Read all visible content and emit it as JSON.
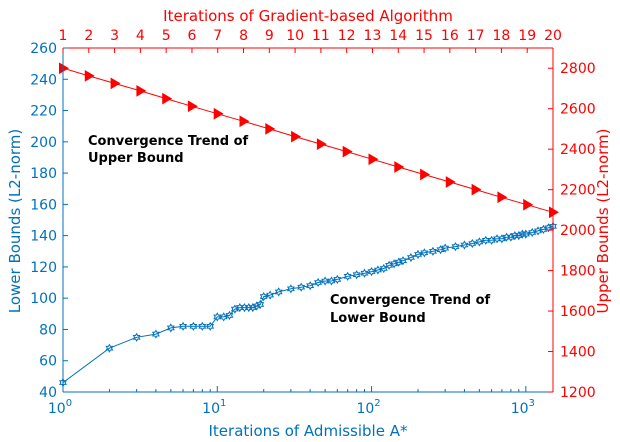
{
  "chart_data": {
    "type": "line",
    "top_xlabel": "Iterations of Gradient-based Algorithm",
    "bottom_xlabel": "Iterations of Admissible A*",
    "left_ylabel": "Lower Bounds (L2-norm)",
    "right_ylabel": "Upper Bounds (L2-norm)",
    "colors": {
      "lower": "#0072BD",
      "upper": "#FF0000",
      "annotation": "#000000"
    },
    "bottom_xscale": "log",
    "bottom_xlim": [
      1,
      1500
    ],
    "bottom_xticks": [
      {
        "value": 1,
        "base": "10",
        "exp": "0"
      },
      {
        "value": 10,
        "base": "10",
        "exp": "1"
      },
      {
        "value": 100,
        "base": "10",
        "exp": "2"
      },
      {
        "value": 1000,
        "base": "10",
        "exp": "3"
      }
    ],
    "top_xlim": [
      1,
      20
    ],
    "top_xticks": [
      "1",
      "2",
      "3",
      "4",
      "5",
      "6",
      "7",
      "8",
      "9",
      "10",
      "11",
      "12",
      "13",
      "14",
      "15",
      "16",
      "17",
      "18",
      "19",
      "20"
    ],
    "left_ylim": [
      40,
      260
    ],
    "left_yticks": [
      "40",
      "60",
      "80",
      "100",
      "120",
      "140",
      "160",
      "180",
      "200",
      "220",
      "240",
      "260"
    ],
    "right_ylim": [
      1200,
      2900
    ],
    "right_yticks": [
      "1200",
      "1400",
      "1600",
      "1800",
      "2000",
      "2200",
      "2400",
      "2600",
      "2800"
    ],
    "grid": false,
    "annotations": [
      {
        "lines": [
          "Convergence Trend of",
          "Upper Bound"
        ]
      },
      {
        "lines": [
          "Convergence Trend of",
          "Lower Bound"
        ]
      }
    ],
    "series": [
      {
        "axis": "bottom-left",
        "marker": "hexagram",
        "x": [
          1,
          2,
          3,
          4,
          5,
          6,
          7,
          8,
          9,
          10,
          11,
          12,
          13,
          14,
          15,
          16,
          17,
          18,
          19,
          20,
          22,
          25,
          30,
          35,
          40,
          45,
          50,
          55,
          60,
          70,
          80,
          90,
          100,
          110,
          120,
          130,
          140,
          150,
          160,
          180,
          200,
          220,
          250,
          280,
          300,
          350,
          400,
          450,
          500,
          550,
          600,
          650,
          700,
          750,
          800,
          850,
          900,
          950,
          1000,
          1100,
          1200,
          1300,
          1400,
          1500
        ],
        "y": [
          46,
          68,
          75,
          77,
          81,
          82,
          82,
          82,
          82,
          88,
          88,
          89,
          93,
          94,
          94,
          94,
          94,
          95,
          96,
          101,
          102,
          104,
          106,
          107,
          108,
          110,
          111,
          111,
          112,
          114,
          115,
          116,
          117,
          118,
          119,
          121,
          122,
          123,
          124,
          126,
          128,
          129,
          130,
          131,
          132,
          133,
          134,
          135,
          136,
          137,
          137,
          138,
          138,
          139,
          139,
          140,
          140,
          141,
          141,
          142,
          143,
          144,
          145,
          146
        ]
      },
      {
        "axis": "top-right",
        "marker": "triangle-right",
        "x": [
          1,
          2,
          3,
          4,
          5,
          6,
          7,
          8,
          9,
          10,
          11,
          12,
          13,
          14,
          15,
          16,
          17,
          18,
          19,
          20
        ],
        "y": [
          2800,
          2762,
          2725,
          2688,
          2650,
          2612,
          2575,
          2538,
          2500,
          2462,
          2425,
          2388,
          2350,
          2312,
          2275,
          2238,
          2200,
          2162,
          2125,
          2088
        ]
      }
    ]
  }
}
